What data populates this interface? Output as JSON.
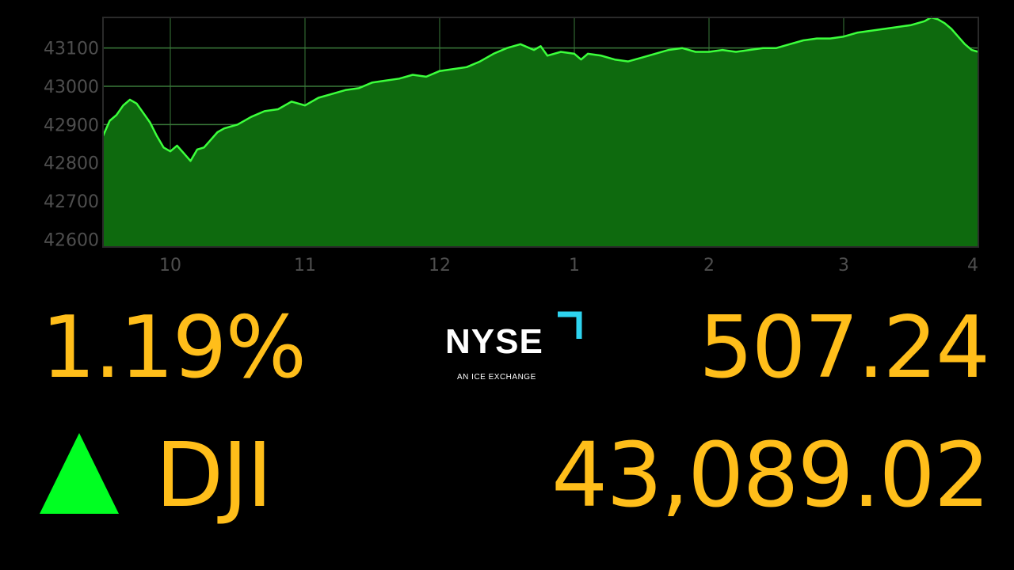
{
  "chart_data": {
    "type": "area",
    "x_tick_labels": [
      "10",
      "11",
      "12",
      "1",
      "2",
      "3",
      "4"
    ],
    "y_tick_labels": [
      "43100",
      "43000",
      "42900",
      "42800",
      "42700",
      "42600"
    ],
    "ylim": [
      42580,
      43180
    ],
    "grid": true,
    "colors": {
      "line": "#3cff3c",
      "fill": "#0e6a0e",
      "frame": "#2a2a2a",
      "grid": "#3a7a3a"
    },
    "series": [
      {
        "x": [
          9.5,
          9.55,
          9.6,
          9.65,
          9.7,
          9.75,
          9.8,
          9.85,
          9.9,
          9.95,
          10.0,
          10.05,
          10.1,
          10.15,
          10.2,
          10.25,
          10.3,
          10.35,
          10.4,
          10.5,
          10.6,
          10.7,
          10.8,
          10.9,
          11.0,
          11.1,
          11.2,
          11.3,
          11.4,
          11.5,
          11.6,
          11.7,
          11.8,
          11.9,
          12.0,
          12.1,
          12.2,
          12.3,
          12.4,
          12.5,
          12.6,
          12.7,
          12.75,
          12.8,
          12.9,
          13.0,
          13.05,
          13.1,
          13.2,
          13.3,
          13.4,
          13.5,
          13.6,
          13.7,
          13.8,
          13.9,
          14.0,
          14.1,
          14.2,
          14.3,
          14.4,
          14.5,
          14.6,
          14.7,
          14.8,
          14.9,
          15.0,
          15.1,
          15.2,
          15.3,
          15.4,
          15.5,
          15.6,
          15.65,
          15.7,
          15.75,
          15.8,
          15.85,
          15.9,
          15.95,
          16.0
        ],
        "y": [
          42870,
          42910,
          42925,
          42950,
          42965,
          42955,
          42930,
          42905,
          42870,
          42840,
          42830,
          42845,
          42825,
          42805,
          42835,
          42840,
          42860,
          42880,
          42890,
          42900,
          42920,
          42935,
          42940,
          42960,
          42950,
          42970,
          42980,
          42990,
          42995,
          43010,
          43015,
          43020,
          43030,
          43025,
          43040,
          43045,
          43050,
          43065,
          43085,
          43100,
          43110,
          43095,
          43105,
          43080,
          43090,
          43085,
          43070,
          43085,
          43080,
          43070,
          43065,
          43075,
          43085,
          43095,
          43100,
          43090,
          43090,
          43095,
          43090,
          43095,
          43100,
          43100,
          43110,
          43120,
          43125,
          43125,
          43130,
          43140,
          43145,
          43150,
          43155,
          43160,
          43170,
          43180,
          43175,
          43165,
          43150,
          43130,
          43110,
          43095,
          43090
        ]
      }
    ]
  },
  "quote": {
    "percent_change": "1.19%",
    "ticker": "DJI",
    "point_change": "507.24",
    "level": "43,089.02",
    "direction": "up",
    "up_color": "#00ff22",
    "value_color": "#ffbe1a"
  },
  "logo": {
    "name": "NYSE",
    "tagline": "AN ICE EXCHANGE",
    "accent_color": "#2ed3ef"
  }
}
